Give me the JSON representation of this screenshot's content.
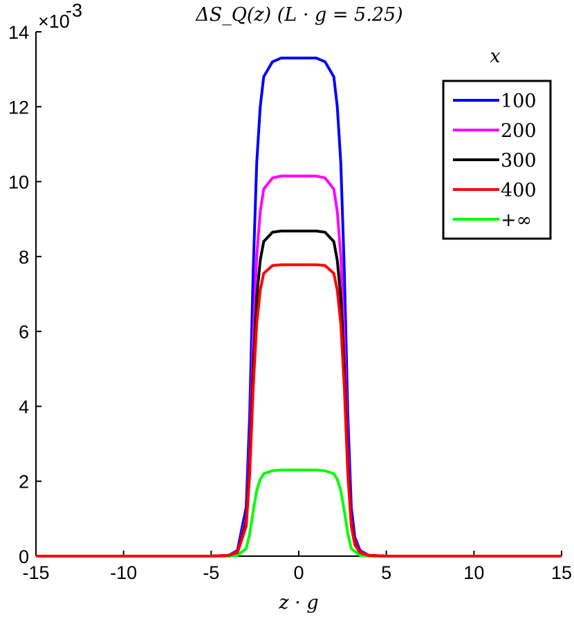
{
  "chart_data": {
    "type": "line",
    "title": "ΔS_Q(z) (L · g = 5.25)",
    "xlabel": "z · g",
    "ylabel": "",
    "y_exponent_label": "×10",
    "y_exponent_power": "-3",
    "xlim": [
      -15,
      15
    ],
    "ylim": [
      0,
      14
    ],
    "x_ticks": [
      -15,
      -10,
      -5,
      0,
      5,
      10,
      15
    ],
    "x_tick_labels": [
      "-15",
      "-10",
      "-5",
      "0",
      "5",
      "10",
      "15"
    ],
    "y_ticks": [
      0,
      2,
      4,
      6,
      8,
      10,
      12,
      14
    ],
    "y_tick_labels": [
      "0",
      "2",
      "4",
      "6",
      "8",
      "10",
      "12",
      "14"
    ],
    "legend_title": "x",
    "legend_position": "top-right",
    "grid": false,
    "series": [
      {
        "name": "100",
        "color": "#0000ff",
        "x": [
          -15,
          -5,
          -4,
          -3.5,
          -3,
          -2.8,
          -2.6,
          -2.4,
          -2.2,
          -2,
          -1.5,
          -1,
          0,
          1,
          1.5,
          2,
          2.2,
          2.4,
          2.6,
          2.8,
          3,
          3.2,
          3.5,
          4,
          5,
          15
        ],
        "y": [
          0,
          0,
          0.02,
          0.15,
          1.3,
          3.8,
          7.6,
          10.5,
          12.0,
          12.8,
          13.2,
          13.3,
          13.3,
          13.3,
          13.2,
          12.8,
          12.0,
          10.5,
          7.6,
          3.8,
          1.3,
          0.5,
          0.15,
          0.02,
          0,
          0
        ]
      },
      {
        "name": "200",
        "color": "#ff00ff",
        "x": [
          -15,
          -5,
          -4,
          -3.5,
          -3,
          -2.8,
          -2.6,
          -2.4,
          -2.2,
          -2,
          -1.5,
          -1,
          0,
          1,
          1.5,
          2,
          2.2,
          2.4,
          2.6,
          2.8,
          3,
          3.2,
          3.5,
          4,
          5,
          15
        ],
        "y": [
          0,
          0,
          0.02,
          0.12,
          1.0,
          2.9,
          5.8,
          8.0,
          9.2,
          9.8,
          10.1,
          10.15,
          10.15,
          10.15,
          10.1,
          9.8,
          9.2,
          8.0,
          5.8,
          2.9,
          1.0,
          0.4,
          0.12,
          0.02,
          0,
          0
        ]
      },
      {
        "name": "300",
        "color": "#000000",
        "x": [
          -15,
          -5,
          -4,
          -3.5,
          -3,
          -2.8,
          -2.6,
          -2.4,
          -2.2,
          -2,
          -1.5,
          -1,
          0,
          1,
          1.5,
          2,
          2.2,
          2.4,
          2.6,
          2.8,
          3,
          3.2,
          3.5,
          4,
          5,
          15
        ],
        "y": [
          0,
          0,
          0.02,
          0.1,
          0.9,
          2.5,
          5.0,
          6.9,
          7.9,
          8.4,
          8.65,
          8.68,
          8.68,
          8.68,
          8.65,
          8.4,
          7.9,
          6.9,
          5.0,
          2.5,
          0.9,
          0.35,
          0.1,
          0.02,
          0,
          0
        ]
      },
      {
        "name": "400",
        "color": "#ff0000",
        "x": [
          -15,
          -5,
          -4,
          -3.5,
          -3,
          -2.8,
          -2.6,
          -2.4,
          -2.2,
          -2,
          -1.5,
          -1,
          0,
          1,
          1.5,
          2,
          2.2,
          2.4,
          2.6,
          2.8,
          3,
          3.2,
          3.5,
          4,
          5,
          15
        ],
        "y": [
          0,
          0,
          0.02,
          0.09,
          0.8,
          2.2,
          4.5,
          6.2,
          7.1,
          7.55,
          7.76,
          7.78,
          7.78,
          7.78,
          7.76,
          7.55,
          7.1,
          6.2,
          4.5,
          2.2,
          0.8,
          0.3,
          0.09,
          0.02,
          0,
          0
        ]
      },
      {
        "name": "+∞",
        "color": "#00ff00",
        "x": [
          -15,
          -5,
          -4,
          -3.5,
          -3,
          -2.8,
          -2.6,
          -2.4,
          -2.2,
          -2,
          -1.5,
          -1,
          0,
          1,
          1.5,
          2,
          2.2,
          2.4,
          2.6,
          2.8,
          3,
          3.5,
          4,
          5,
          15
        ],
        "y": [
          0,
          0,
          0.0,
          0.02,
          0.2,
          0.6,
          1.2,
          1.75,
          2.05,
          2.2,
          2.28,
          2.3,
          2.3,
          2.3,
          2.28,
          2.2,
          2.05,
          1.75,
          1.2,
          0.6,
          0.2,
          0.02,
          0.0,
          0,
          0
        ]
      }
    ]
  }
}
